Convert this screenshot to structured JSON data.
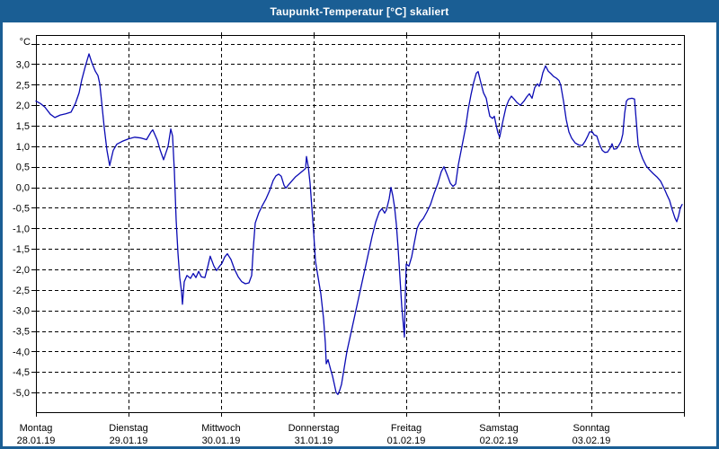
{
  "window": {
    "title": "Taupunkt-Temperatur [°C] skaliert",
    "titlebar_color": "#1a5e94",
    "border_color": "#1a5e94"
  },
  "chart_data": {
    "type": "line",
    "title": "Taupunkt-Temperatur [°C] skaliert",
    "unit_label": "°C",
    "line_color": "#0a0ab4",
    "grid": "dashed",
    "grid_color": "#000000",
    "legend": "none",
    "ylim": [
      -5.48,
      3.71
    ],
    "ygrid_values": [
      3.5,
      3.0,
      2.5,
      2.0,
      1.5,
      1.0,
      0.5,
      0.0,
      -0.5,
      -1.0,
      -1.5,
      -2.0,
      -2.5,
      -3.0,
      -3.5,
      -4.0,
      -4.5,
      -5.0
    ],
    "ytick_labels": [
      {
        "value": 3.0,
        "label": "3,0"
      },
      {
        "value": 2.5,
        "label": "2,5"
      },
      {
        "value": 2.0,
        "label": "2,0"
      },
      {
        "value": 1.5,
        "label": "1,5"
      },
      {
        "value": 1.0,
        "label": "1,0"
      },
      {
        "value": 0.5,
        "label": "0,5"
      },
      {
        "value": 0.0,
        "label": "0,0"
      },
      {
        "value": -0.5,
        "label": "-0,5"
      },
      {
        "value": -1.0,
        "label": "-1,0"
      },
      {
        "value": -1.5,
        "label": "-1,5"
      },
      {
        "value": -2.0,
        "label": "-2,0"
      },
      {
        "value": -2.5,
        "label": "-2,5"
      },
      {
        "value": -3.0,
        "label": "-3,0"
      },
      {
        "value": -3.5,
        "label": "-3,5"
      },
      {
        "value": -4.0,
        "label": "-4,0"
      },
      {
        "value": -4.5,
        "label": "-4,5"
      },
      {
        "value": -5.0,
        "label": "-5,0"
      }
    ],
    "x_days": [
      {
        "name": "Montag",
        "date": "28.01.19"
      },
      {
        "name": "Dienstag",
        "date": "29.01.19"
      },
      {
        "name": "Mittwoch",
        "date": "30.01.19"
      },
      {
        "name": "Donnerstag",
        "date": "31.01.19"
      },
      {
        "name": "Freitag",
        "date": "01.02.19"
      },
      {
        "name": "Samstag",
        "date": "02.02.19"
      },
      {
        "name": "Sonntag",
        "date": "03.02.19"
      }
    ],
    "x_span_days": 7,
    "series": [
      {
        "name": "Taupunkt-Temperatur",
        "points": [
          [
            0.0,
            2.1
          ],
          [
            0.049,
            2.04
          ],
          [
            0.097,
            1.95
          ],
          [
            0.155,
            1.78
          ],
          [
            0.204,
            1.7
          ],
          [
            0.262,
            1.76
          ],
          [
            0.32,
            1.79
          ],
          [
            0.379,
            1.83
          ],
          [
            0.427,
            2.05
          ],
          [
            0.466,
            2.3
          ],
          [
            0.495,
            2.62
          ],
          [
            0.534,
            2.95
          ],
          [
            0.573,
            3.25
          ],
          [
            0.602,
            3.05
          ],
          [
            0.641,
            2.83
          ],
          [
            0.67,
            2.72
          ],
          [
            0.689,
            2.52
          ],
          [
            0.709,
            2.1
          ],
          [
            0.738,
            1.45
          ],
          [
            0.767,
            0.9
          ],
          [
            0.796,
            0.53
          ],
          [
            0.835,
            0.9
          ],
          [
            0.874,
            1.05
          ],
          [
            0.932,
            1.12
          ],
          [
            1.0,
            1.18
          ],
          [
            1.068,
            1.22
          ],
          [
            1.136,
            1.2
          ],
          [
            1.194,
            1.16
          ],
          [
            1.243,
            1.35
          ],
          [
            1.262,
            1.4
          ],
          [
            1.311,
            1.15
          ],
          [
            1.34,
            0.92
          ],
          [
            1.379,
            0.67
          ],
          [
            1.427,
            1.0
          ],
          [
            1.456,
            1.42
          ],
          [
            1.476,
            1.25
          ],
          [
            1.495,
            0.4
          ],
          [
            1.515,
            -0.8
          ],
          [
            1.534,
            -1.6
          ],
          [
            1.553,
            -2.2
          ],
          [
            1.573,
            -2.55
          ],
          [
            1.583,
            -2.85
          ],
          [
            1.602,
            -2.3
          ],
          [
            1.631,
            -2.15
          ],
          [
            1.67,
            -2.22
          ],
          [
            1.699,
            -2.1
          ],
          [
            1.728,
            -2.2
          ],
          [
            1.757,
            -2.05
          ],
          [
            1.786,
            -2.18
          ],
          [
            1.825,
            -2.2
          ],
          [
            1.854,
            -1.95
          ],
          [
            1.883,
            -1.68
          ],
          [
            1.922,
            -1.92
          ],
          [
            1.951,
            -2.03
          ],
          [
            1.981,
            -1.93
          ],
          [
            2.01,
            -1.85
          ],
          [
            2.039,
            -1.7
          ],
          [
            2.068,
            -1.62
          ],
          [
            2.107,
            -1.76
          ],
          [
            2.146,
            -2.0
          ],
          [
            2.184,
            -2.18
          ],
          [
            2.223,
            -2.3
          ],
          [
            2.262,
            -2.35
          ],
          [
            2.301,
            -2.33
          ],
          [
            2.33,
            -2.15
          ],
          [
            2.35,
            -1.4
          ],
          [
            2.369,
            -0.87
          ],
          [
            2.408,
            -0.62
          ],
          [
            2.447,
            -0.44
          ],
          [
            2.485,
            -0.28
          ],
          [
            2.524,
            -0.08
          ],
          [
            2.563,
            0.17
          ],
          [
            2.592,
            0.28
          ],
          [
            2.621,
            0.32
          ],
          [
            2.65,
            0.27
          ],
          [
            2.68,
            0.05
          ],
          [
            2.699,
            -0.02
          ],
          [
            2.728,
            0.06
          ],
          [
            2.767,
            0.16
          ],
          [
            2.806,
            0.26
          ],
          [
            2.845,
            0.33
          ],
          [
            2.883,
            0.4
          ],
          [
            2.913,
            0.46
          ],
          [
            2.922,
            0.75
          ],
          [
            2.942,
            0.5
          ],
          [
            2.961,
            0.1
          ],
          [
            2.981,
            -0.5
          ],
          [
            3.0,
            -1.1
          ],
          [
            3.019,
            -1.8
          ],
          [
            3.049,
            -2.2
          ],
          [
            3.078,
            -2.6
          ],
          [
            3.107,
            -3.2
          ],
          [
            3.126,
            -3.8
          ],
          [
            3.136,
            -4.3
          ],
          [
            3.155,
            -4.2
          ],
          [
            3.184,
            -4.45
          ],
          [
            3.204,
            -4.6
          ],
          [
            3.223,
            -4.8
          ],
          [
            3.243,
            -5.0
          ],
          [
            3.262,
            -5.05
          ],
          [
            3.281,
            -4.95
          ],
          [
            3.301,
            -4.8
          ],
          [
            3.33,
            -4.4
          ],
          [
            3.359,
            -4.0
          ],
          [
            3.398,
            -3.6
          ],
          [
            3.437,
            -3.2
          ],
          [
            3.476,
            -2.8
          ],
          [
            3.515,
            -2.4
          ],
          [
            3.553,
            -2.0
          ],
          [
            3.592,
            -1.6
          ],
          [
            3.631,
            -1.2
          ],
          [
            3.67,
            -0.85
          ],
          [
            3.709,
            -0.6
          ],
          [
            3.738,
            -0.52
          ],
          [
            3.767,
            -0.63
          ],
          [
            3.786,
            -0.55
          ],
          [
            3.816,
            -0.28
          ],
          [
            3.835,
            0.0
          ],
          [
            3.854,
            -0.2
          ],
          [
            3.874,
            -0.48
          ],
          [
            3.893,
            -0.9
          ],
          [
            3.913,
            -1.5
          ],
          [
            3.932,
            -2.2
          ],
          [
            3.951,
            -2.9
          ],
          [
            3.971,
            -3.4
          ],
          [
            3.981,
            -3.65
          ],
          [
            3.99,
            -2.6
          ],
          [
            4.0,
            -1.87
          ],
          [
            4.029,
            -1.92
          ],
          [
            4.058,
            -1.7
          ],
          [
            4.087,
            -1.35
          ],
          [
            4.117,
            -1.0
          ],
          [
            4.146,
            -0.86
          ],
          [
            4.184,
            -0.76
          ],
          [
            4.223,
            -0.6
          ],
          [
            4.262,
            -0.42
          ],
          [
            4.301,
            -0.15
          ],
          [
            4.34,
            0.08
          ],
          [
            4.379,
            0.38
          ],
          [
            4.408,
            0.5
          ],
          [
            4.447,
            0.28
          ],
          [
            4.476,
            0.1
          ],
          [
            4.505,
            0.02
          ],
          [
            4.534,
            0.08
          ],
          [
            4.563,
            0.55
          ],
          [
            4.602,
            1.0
          ],
          [
            4.641,
            1.45
          ],
          [
            4.67,
            1.9
          ],
          [
            4.699,
            2.25
          ],
          [
            4.728,
            2.55
          ],
          [
            4.757,
            2.78
          ],
          [
            4.777,
            2.82
          ],
          [
            4.806,
            2.55
          ],
          [
            4.835,
            2.3
          ],
          [
            4.864,
            2.17
          ],
          [
            4.883,
            1.95
          ],
          [
            4.903,
            1.73
          ],
          [
            4.932,
            1.68
          ],
          [
            4.951,
            1.73
          ],
          [
            4.971,
            1.52
          ],
          [
            4.99,
            1.33
          ],
          [
            5.01,
            1.22
          ],
          [
            5.029,
            1.45
          ],
          [
            5.049,
            1.66
          ],
          [
            5.078,
            1.95
          ],
          [
            5.107,
            2.12
          ],
          [
            5.136,
            2.22
          ],
          [
            5.165,
            2.15
          ],
          [
            5.194,
            2.07
          ],
          [
            5.233,
            2.0
          ],
          [
            5.272,
            2.1
          ],
          [
            5.301,
            2.2
          ],
          [
            5.33,
            2.28
          ],
          [
            5.359,
            2.17
          ],
          [
            5.388,
            2.43
          ],
          [
            5.417,
            2.52
          ],
          [
            5.437,
            2.46
          ],
          [
            5.456,
            2.6
          ],
          [
            5.476,
            2.79
          ],
          [
            5.505,
            2.96
          ],
          [
            5.534,
            2.83
          ],
          [
            5.563,
            2.77
          ],
          [
            5.592,
            2.7
          ],
          [
            5.621,
            2.66
          ],
          [
            5.65,
            2.6
          ],
          [
            5.67,
            2.48
          ],
          [
            5.699,
            2.1
          ],
          [
            5.728,
            1.65
          ],
          [
            5.757,
            1.35
          ],
          [
            5.786,
            1.2
          ],
          [
            5.825,
            1.08
          ],
          [
            5.864,
            1.03
          ],
          [
            5.903,
            1.02
          ],
          [
            5.932,
            1.12
          ],
          [
            5.961,
            1.25
          ],
          [
            5.981,
            1.35
          ],
          [
            6.01,
            1.35
          ],
          [
            6.029,
            1.28
          ],
          [
            6.058,
            1.25
          ],
          [
            6.087,
            1.05
          ],
          [
            6.117,
            0.9
          ],
          [
            6.146,
            0.85
          ],
          [
            6.175,
            0.86
          ],
          [
            6.204,
            0.96
          ],
          [
            6.223,
            1.06
          ],
          [
            6.243,
            0.93
          ],
          [
            6.272,
            0.94
          ],
          [
            6.291,
            1.0
          ],
          [
            6.32,
            1.12
          ],
          [
            6.34,
            1.3
          ],
          [
            6.359,
            1.8
          ],
          [
            6.379,
            2.1
          ],
          [
            6.398,
            2.15
          ],
          [
            6.437,
            2.17
          ],
          [
            6.466,
            2.15
          ],
          [
            6.485,
            1.6
          ],
          [
            6.505,
            1.05
          ],
          [
            6.524,
            0.88
          ],
          [
            6.553,
            0.7
          ],
          [
            6.592,
            0.52
          ],
          [
            6.631,
            0.42
          ],
          [
            6.67,
            0.33
          ],
          [
            6.709,
            0.25
          ],
          [
            6.748,
            0.15
          ],
          [
            6.786,
            -0.03
          ],
          [
            6.816,
            -0.18
          ],
          [
            6.845,
            -0.32
          ],
          [
            6.874,
            -0.55
          ],
          [
            6.903,
            -0.75
          ],
          [
            6.922,
            -0.84
          ],
          [
            6.942,
            -0.7
          ],
          [
            6.961,
            -0.5
          ],
          [
            6.981,
            -0.42
          ]
        ]
      }
    ]
  }
}
